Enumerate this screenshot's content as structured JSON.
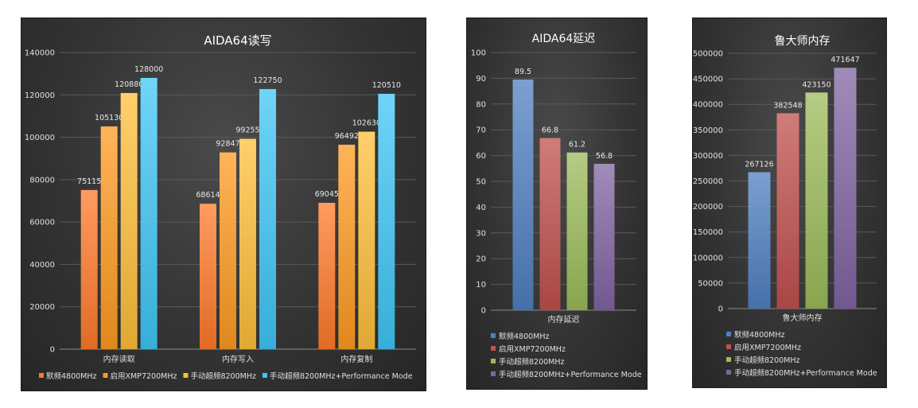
{
  "chart_data": [
    {
      "type": "bar",
      "title": "AIDA64读写",
      "categories": [
        "内存读取",
        "内存写入",
        "内存复制"
      ],
      "ylim": [
        0,
        140000
      ],
      "yticks": [
        0,
        20000,
        40000,
        60000,
        80000,
        100000,
        120000,
        140000
      ],
      "grid": true,
      "legend_position": "bottom",
      "series": [
        {
          "name": "默频4800MHz",
          "values": [
            75115,
            68614,
            69045
          ],
          "color": "#ff7a2a"
        },
        {
          "name": "启用XMP7200MHz",
          "values": [
            105130,
            92847,
            96492
          ],
          "color": "#ff9a20"
        },
        {
          "name": "手动超频8200MHz",
          "values": [
            120880,
            99255,
            102630
          ],
          "color": "#ffbf3a"
        },
        {
          "name": "手动超频8200MHz+Performance Mode",
          "values": [
            128000,
            122750,
            120510
          ],
          "color": "#3fc6f5"
        }
      ]
    },
    {
      "type": "bar",
      "title": "AIDA64延迟",
      "categories": [
        "内存延迟"
      ],
      "ylim": [
        0,
        100
      ],
      "yticks": [
        0,
        10,
        20,
        30,
        40,
        50,
        60,
        70,
        80,
        90,
        100
      ],
      "grid": true,
      "legend_position": "bottom",
      "series": [
        {
          "name": "默频4800MHz",
          "values": [
            89.5
          ],
          "color": "#4f7fc0"
        },
        {
          "name": "启用XMP7200MHz",
          "values": [
            66.8
          ],
          "color": "#c0504d"
        },
        {
          "name": "手动超频8200MHz",
          "values": [
            61.2
          ],
          "color": "#9bbb59"
        },
        {
          "name": "手动超频8200MHz+Performance Mode",
          "values": [
            56.8
          ],
          "color": "#8064a2"
        }
      ]
    },
    {
      "type": "bar",
      "title": "鲁大师内存",
      "categories": [
        "鲁大师内存"
      ],
      "ylim": [
        0,
        500000
      ],
      "yticks": [
        0,
        50000,
        100000,
        150000,
        200000,
        250000,
        300000,
        350000,
        400000,
        450000,
        500000
      ],
      "grid": true,
      "legend_position": "bottom",
      "series": [
        {
          "name": "默频4800MHz",
          "values": [
            267126
          ],
          "color": "#4f7fc0"
        },
        {
          "name": "启用XMP7200MHz",
          "values": [
            382548
          ],
          "color": "#c0504d"
        },
        {
          "name": "手动超频8200MHz",
          "values": [
            423150
          ],
          "color": "#9bbb59"
        },
        {
          "name": "手动超频8200MHz+Performance Mode",
          "values": [
            471647
          ],
          "color": "#8064a2"
        }
      ]
    }
  ]
}
